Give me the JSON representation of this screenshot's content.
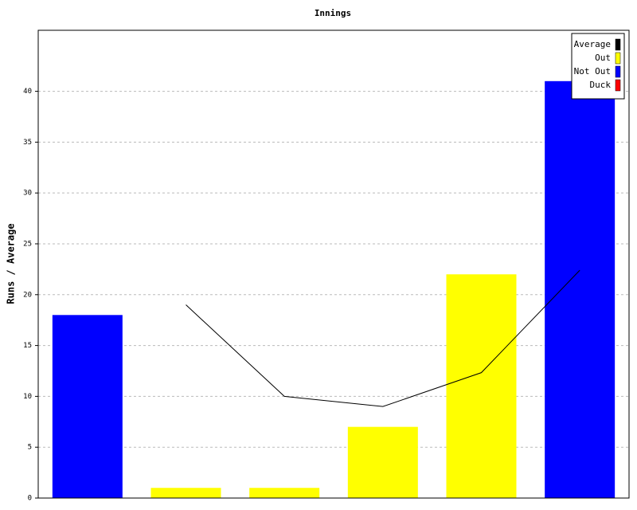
{
  "chart_data": {
    "type": "bar",
    "title": "Innings",
    "y_label": "Runs / Average",
    "categories": [
      null,
      null,
      null,
      null,
      null,
      null
    ],
    "series": [
      {
        "name": "Average",
        "type": "line",
        "color": "#000000",
        "values": [
          null,
          19,
          10,
          9,
          12.33,
          22.4
        ]
      },
      {
        "name": "Out",
        "color": "#ffff00",
        "values": [
          null,
          1,
          1,
          7,
          22,
          null
        ]
      },
      {
        "name": "Not Out",
        "color": "#0000ff",
        "values": [
          18,
          null,
          null,
          null,
          null,
          41
        ]
      },
      {
        "name": "Duck",
        "color": "#ff0000",
        "values": [
          null,
          null,
          null,
          null,
          null,
          null
        ]
      }
    ],
    "ylim": [
      0,
      46
    ],
    "yticks": [
      0,
      5,
      10,
      15,
      20,
      25,
      30,
      35,
      40
    ],
    "grid": true,
    "legend": "top-right"
  }
}
